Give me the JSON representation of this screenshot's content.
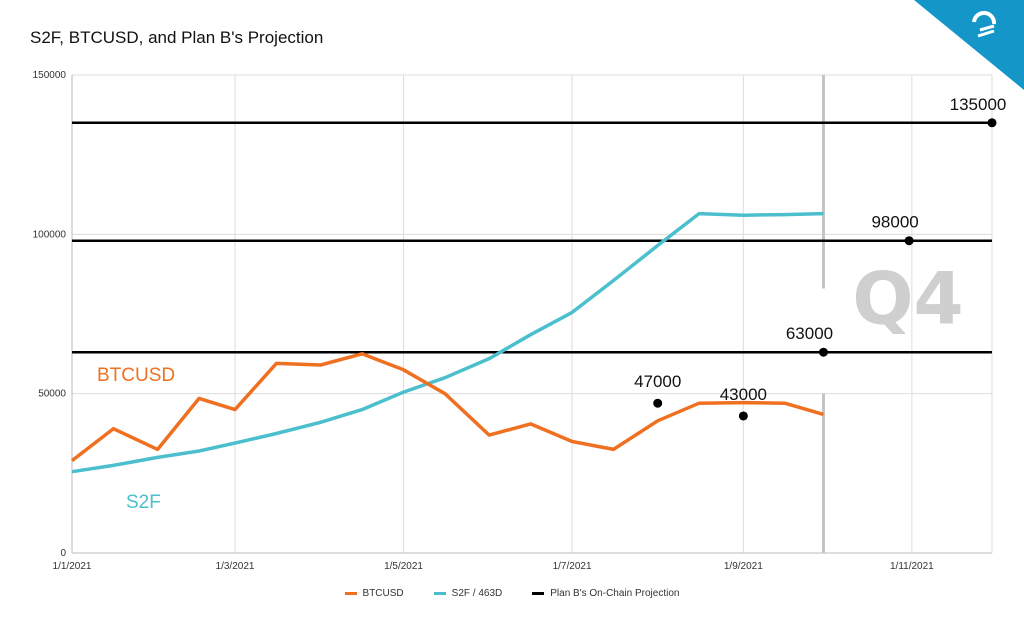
{
  "chart_data": {
    "type": "line",
    "title": "S2F, BTCUSD, and Plan B's Projection",
    "x_tick_labels": [
      "1/1/2021",
      "1/3/2021",
      "1/5/2021",
      "1/7/2021",
      "1/9/2021",
      "1/11/2021"
    ],
    "ylim": [
      0,
      150000
    ],
    "y_ticks": [
      0,
      50000,
      100000,
      150000
    ],
    "grid": true,
    "legend_position": "bottom-center",
    "series": [
      {
        "name": "BTCUSD",
        "color": "#f07022",
        "points": [
          [
            "2021-01-01",
            29000
          ],
          [
            "2021-01-16",
            39000
          ],
          [
            "2021-02-01",
            32500
          ],
          [
            "2021-02-16",
            48500
          ],
          [
            "2021-03-01",
            45000
          ],
          [
            "2021-03-16",
            59500
          ],
          [
            "2021-04-01",
            59000
          ],
          [
            "2021-04-16",
            62500
          ],
          [
            "2021-05-01",
            57500
          ],
          [
            "2021-05-16",
            50000
          ],
          [
            "2021-06-01",
            37000
          ],
          [
            "2021-06-16",
            40500
          ],
          [
            "2021-07-01",
            35000
          ],
          [
            "2021-07-16",
            32500
          ],
          [
            "2021-08-01",
            41500
          ],
          [
            "2021-08-16",
            47000
          ],
          [
            "2021-09-01",
            47200
          ],
          [
            "2021-09-16",
            47000
          ],
          [
            "2021-09-30",
            43500
          ]
        ]
      },
      {
        "name": "S2F / 463D",
        "color": "#4bbfce",
        "points": [
          [
            "2021-01-01",
            25500
          ],
          [
            "2021-01-16",
            27500
          ],
          [
            "2021-02-01",
            30000
          ],
          [
            "2021-02-16",
            32000
          ],
          [
            "2021-03-01",
            34500
          ],
          [
            "2021-03-16",
            37500
          ],
          [
            "2021-04-01",
            41000
          ],
          [
            "2021-04-16",
            45000
          ],
          [
            "2021-05-01",
            50500
          ],
          [
            "2021-05-16",
            55000
          ],
          [
            "2021-06-01",
            61000
          ],
          [
            "2021-06-16",
            68500
          ],
          [
            "2021-07-01",
            75500
          ],
          [
            "2021-07-16",
            85500
          ],
          [
            "2021-08-01",
            96500
          ],
          [
            "2021-08-16",
            106500
          ],
          [
            "2021-09-01",
            106000
          ],
          [
            "2021-09-16",
            106200
          ],
          [
            "2021-09-30",
            106500
          ]
        ]
      },
      {
        "name": "Plan B's On-Chain Projection",
        "color": "#000000",
        "levels": [
          {
            "value": 63000,
            "label": "63000",
            "point": "2021-09-30"
          },
          {
            "value": 98000,
            "label": "98000",
            "point": "2021-10-31"
          },
          {
            "value": 135000,
            "label": "135000",
            "point": "2021-11-30"
          }
        ]
      }
    ],
    "extra_points": [
      {
        "x": "2021-08-01",
        "y": 47000,
        "label": "47000"
      },
      {
        "x": "2021-09-01",
        "y": 43000,
        "label": "43000"
      }
    ],
    "series_labels": [
      {
        "text": "BTCUSD",
        "color": "#f07022"
      },
      {
        "text": "S2F",
        "color": "#4bbfce"
      }
    ],
    "quarter_marker": {
      "x": "2021-09-30",
      "label": "Q4"
    }
  },
  "legend": [
    {
      "name": "BTCUSD",
      "color": "#f07022"
    },
    {
      "name": "S2F / 463D",
      "color": "#4bbfce"
    },
    {
      "name": "Plan B's On-Chain Projection",
      "color": "#000000"
    }
  ],
  "brand_color": "#1596c9"
}
